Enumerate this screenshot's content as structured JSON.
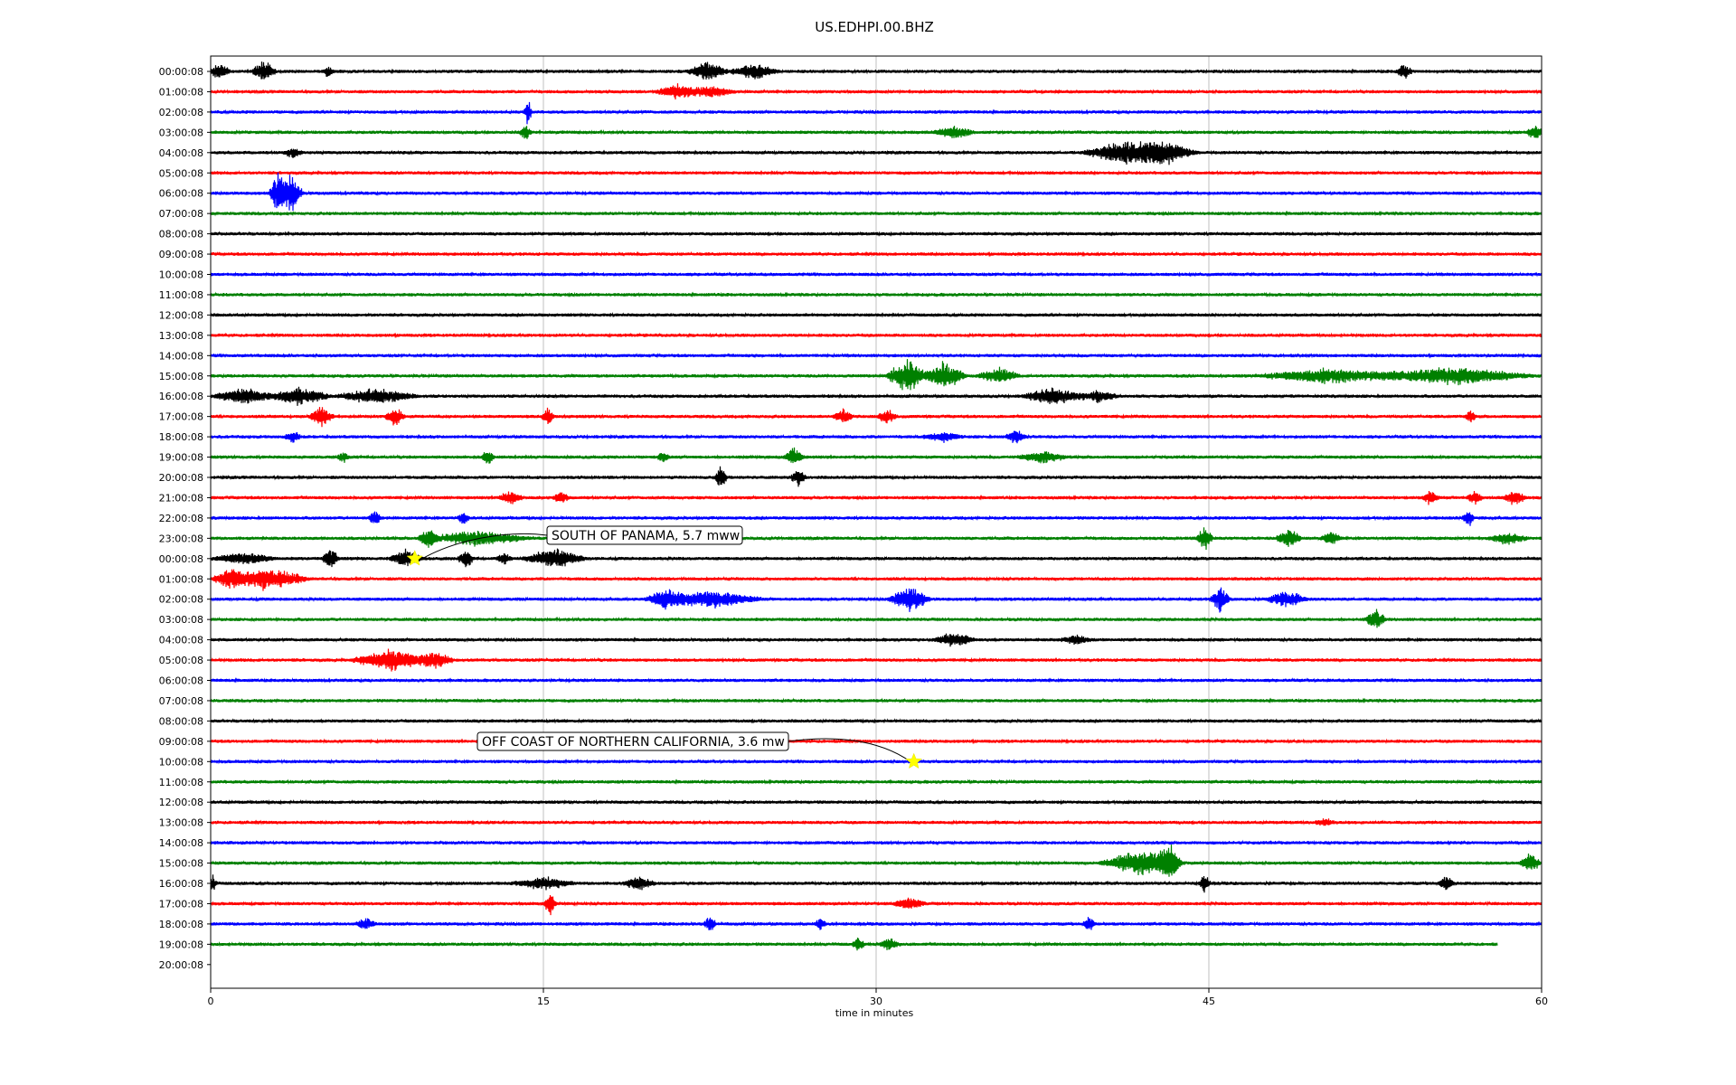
{
  "chart_data": {
    "type": "line",
    "title": "US.EDHPI.00.BHZ",
    "xlabel": "time in minutes",
    "ylabel": "",
    "xlim": [
      0,
      60
    ],
    "x_ticks": [
      0,
      15,
      30,
      45,
      60
    ],
    "grid": "vertical lines at x ticks",
    "trace_colors": [
      "#000000",
      "#ff0000",
      "#0000ff",
      "#008000"
    ],
    "row_labels": [
      "00:00:08",
      "01:00:08",
      "02:00:08",
      "03:00:08",
      "04:00:08",
      "05:00:08",
      "06:00:08",
      "07:00:08",
      "08:00:08",
      "09:00:08",
      "10:00:08",
      "11:00:08",
      "12:00:08",
      "13:00:08",
      "14:00:08",
      "15:00:08",
      "16:00:08",
      "17:00:08",
      "18:00:08",
      "19:00:08",
      "20:00:08",
      "21:00:08",
      "22:00:08",
      "23:00:08",
      "00:00:08",
      "01:00:08",
      "02:00:08",
      "03:00:08",
      "04:00:08",
      "05:00:08",
      "06:00:08",
      "07:00:08",
      "08:00:08",
      "09:00:08",
      "10:00:08",
      "11:00:08",
      "12:00:08",
      "13:00:08",
      "14:00:08",
      "15:00:08",
      "16:00:08",
      "17:00:08",
      "18:00:08",
      "19:00:08",
      "20:00:08"
    ],
    "trace_end_minutes": {
      "43": 58.0
    },
    "bursts": [
      {
        "row": 0,
        "x": 0.4,
        "amp": 0.6,
        "dur": 0.5
      },
      {
        "row": 0,
        "x": 2.4,
        "amp": 0.7,
        "dur": 0.6
      },
      {
        "row": 0,
        "x": 5.3,
        "amp": 0.4,
        "dur": 0.3
      },
      {
        "row": 0,
        "x": 22.4,
        "amp": 0.7,
        "dur": 1.0
      },
      {
        "row": 0,
        "x": 24.5,
        "amp": 0.5,
        "dur": 1.2
      },
      {
        "row": 0,
        "x": 53.8,
        "amp": 0.5,
        "dur": 0.4
      },
      {
        "row": 1,
        "x": 21.0,
        "amp": 0.5,
        "dur": 1.0
      },
      {
        "row": 1,
        "x": 22.5,
        "amp": 0.4,
        "dur": 1.2
      },
      {
        "row": 2,
        "x": 14.3,
        "amp": 0.9,
        "dur": 0.2
      },
      {
        "row": 3,
        "x": 14.2,
        "amp": 0.5,
        "dur": 0.3
      },
      {
        "row": 3,
        "x": 33.5,
        "amp": 0.4,
        "dur": 1.0
      },
      {
        "row": 3,
        "x": 59.7,
        "amp": 0.5,
        "dur": 0.4
      },
      {
        "row": 4,
        "x": 3.7,
        "amp": 0.3,
        "dur": 0.5
      },
      {
        "row": 4,
        "x": 41.2,
        "amp": 0.8,
        "dur": 2.0
      },
      {
        "row": 4,
        "x": 43.0,
        "amp": 0.8,
        "dur": 1.5
      },
      {
        "row": 6,
        "x": 3.0,
        "amp": 1.5,
        "dur": 0.4
      },
      {
        "row": 6,
        "x": 3.6,
        "amp": 1.4,
        "dur": 0.6
      },
      {
        "row": 15,
        "x": 31.4,
        "amp": 1.2,
        "dur": 1.0
      },
      {
        "row": 15,
        "x": 33.1,
        "amp": 1.0,
        "dur": 1.0
      },
      {
        "row": 15,
        "x": 35.5,
        "amp": 0.6,
        "dur": 1.0
      },
      {
        "row": 15,
        "x": 50.5,
        "amp": 0.5,
        "dur": 3.5
      },
      {
        "row": 15,
        "x": 56.0,
        "amp": 0.6,
        "dur": 3.8
      },
      {
        "row": 16,
        "x": 1.5,
        "amp": 0.6,
        "dur": 1.5
      },
      {
        "row": 16,
        "x": 4.0,
        "amp": 0.6,
        "dur": 1.5
      },
      {
        "row": 16,
        "x": 7.5,
        "amp": 0.5,
        "dur": 2.0
      },
      {
        "row": 16,
        "x": 38.0,
        "amp": 0.6,
        "dur": 1.5
      },
      {
        "row": 16,
        "x": 40.0,
        "amp": 0.4,
        "dur": 1.0
      },
      {
        "row": 17,
        "x": 5.0,
        "amp": 0.7,
        "dur": 0.6
      },
      {
        "row": 17,
        "x": 8.3,
        "amp": 0.7,
        "dur": 0.5
      },
      {
        "row": 17,
        "x": 15.2,
        "amp": 0.6,
        "dur": 0.3
      },
      {
        "row": 17,
        "x": 28.5,
        "amp": 0.5,
        "dur": 0.5
      },
      {
        "row": 17,
        "x": 30.5,
        "amp": 0.5,
        "dur": 0.5
      },
      {
        "row": 17,
        "x": 56.8,
        "amp": 0.4,
        "dur": 0.3
      },
      {
        "row": 18,
        "x": 3.7,
        "amp": 0.4,
        "dur": 0.4
      },
      {
        "row": 18,
        "x": 33.0,
        "amp": 0.3,
        "dur": 1.0
      },
      {
        "row": 18,
        "x": 36.3,
        "amp": 0.5,
        "dur": 0.5
      },
      {
        "row": 19,
        "x": 6.0,
        "amp": 0.4,
        "dur": 0.3
      },
      {
        "row": 19,
        "x": 12.5,
        "amp": 0.6,
        "dur": 0.3
      },
      {
        "row": 19,
        "x": 20.4,
        "amp": 0.4,
        "dur": 0.3
      },
      {
        "row": 19,
        "x": 26.3,
        "amp": 0.6,
        "dur": 0.5
      },
      {
        "row": 19,
        "x": 37.5,
        "amp": 0.4,
        "dur": 1.2
      },
      {
        "row": 20,
        "x": 23.0,
        "amp": 0.9,
        "dur": 0.3
      },
      {
        "row": 20,
        "x": 26.5,
        "amp": 0.6,
        "dur": 0.4
      },
      {
        "row": 21,
        "x": 13.5,
        "amp": 0.5,
        "dur": 0.6
      },
      {
        "row": 21,
        "x": 15.8,
        "amp": 0.4,
        "dur": 0.4
      },
      {
        "row": 21,
        "x": 55.0,
        "amp": 0.5,
        "dur": 0.4
      },
      {
        "row": 21,
        "x": 57.0,
        "amp": 0.5,
        "dur": 0.4
      },
      {
        "row": 21,
        "x": 58.8,
        "amp": 0.5,
        "dur": 0.6
      },
      {
        "row": 22,
        "x": 7.4,
        "amp": 0.6,
        "dur": 0.3
      },
      {
        "row": 22,
        "x": 11.4,
        "amp": 0.4,
        "dur": 0.3
      },
      {
        "row": 22,
        "x": 56.7,
        "amp": 0.7,
        "dur": 0.3
      },
      {
        "row": 23,
        "x": 9.8,
        "amp": 0.7,
        "dur": 0.5
      },
      {
        "row": 23,
        "x": 12.0,
        "amp": 0.5,
        "dur": 2.5
      },
      {
        "row": 23,
        "x": 44.8,
        "amp": 0.9,
        "dur": 0.4
      },
      {
        "row": 23,
        "x": 48.6,
        "amp": 0.8,
        "dur": 0.6
      },
      {
        "row": 23,
        "x": 50.5,
        "amp": 0.5,
        "dur": 0.5
      },
      {
        "row": 23,
        "x": 58.5,
        "amp": 0.4,
        "dur": 1.0
      },
      {
        "row": 24,
        "x": 1.5,
        "amp": 0.4,
        "dur": 1.5
      },
      {
        "row": 24,
        "x": 5.4,
        "amp": 0.8,
        "dur": 0.4
      },
      {
        "row": 24,
        "x": 8.8,
        "amp": 0.6,
        "dur": 0.8
      },
      {
        "row": 24,
        "x": 11.5,
        "amp": 0.7,
        "dur": 0.4
      },
      {
        "row": 24,
        "x": 13.2,
        "amp": 0.4,
        "dur": 0.4
      },
      {
        "row": 24,
        "x": 15.5,
        "amp": 0.7,
        "dur": 1.5
      },
      {
        "row": 25,
        "x": 0.8,
        "amp": 0.6,
        "dur": 0.8
      },
      {
        "row": 25,
        "x": 2.5,
        "amp": 0.8,
        "dur": 2.0
      },
      {
        "row": 26,
        "x": 20.5,
        "amp": 0.6,
        "dur": 1.0
      },
      {
        "row": 26,
        "x": 22.5,
        "amp": 0.6,
        "dur": 2.5
      },
      {
        "row": 26,
        "x": 31.5,
        "amp": 0.9,
        "dur": 1.0
      },
      {
        "row": 26,
        "x": 45.5,
        "amp": 0.8,
        "dur": 0.5
      },
      {
        "row": 26,
        "x": 48.5,
        "amp": 0.6,
        "dur": 1.0
      },
      {
        "row": 27,
        "x": 52.5,
        "amp": 0.8,
        "dur": 0.5
      },
      {
        "row": 28,
        "x": 33.5,
        "amp": 0.5,
        "dur": 1.0
      },
      {
        "row": 28,
        "x": 39.0,
        "amp": 0.3,
        "dur": 0.8
      },
      {
        "row": 29,
        "x": 8.2,
        "amp": 0.7,
        "dur": 2.0
      },
      {
        "row": 29,
        "x": 10.2,
        "amp": 0.6,
        "dur": 0.8
      },
      {
        "row": 37,
        "x": 50.2,
        "amp": 0.3,
        "dur": 0.5
      },
      {
        "row": 39,
        "x": 42.0,
        "amp": 0.9,
        "dur": 2.0
      },
      {
        "row": 39,
        "x": 43.2,
        "amp": 1.0,
        "dur": 0.6
      },
      {
        "row": 39,
        "x": 59.5,
        "amp": 0.7,
        "dur": 0.5
      },
      {
        "row": 40,
        "x": 0.1,
        "amp": 0.6,
        "dur": 0.2
      },
      {
        "row": 40,
        "x": 15.0,
        "amp": 0.4,
        "dur": 1.5
      },
      {
        "row": 40,
        "x": 19.3,
        "amp": 0.5,
        "dur": 0.8
      },
      {
        "row": 40,
        "x": 44.8,
        "amp": 0.6,
        "dur": 0.3
      },
      {
        "row": 40,
        "x": 55.7,
        "amp": 0.5,
        "dur": 0.4
      },
      {
        "row": 41,
        "x": 15.3,
        "amp": 0.8,
        "dur": 0.3
      },
      {
        "row": 41,
        "x": 31.5,
        "amp": 0.4,
        "dur": 0.8
      },
      {
        "row": 42,
        "x": 7.0,
        "amp": 0.4,
        "dur": 0.5
      },
      {
        "row": 42,
        "x": 22.5,
        "amp": 0.6,
        "dur": 0.3
      },
      {
        "row": 42,
        "x": 27.5,
        "amp": 0.4,
        "dur": 0.3
      },
      {
        "row": 42,
        "x": 39.6,
        "amp": 0.5,
        "dur": 0.3
      },
      {
        "row": 43,
        "x": 29.2,
        "amp": 0.5,
        "dur": 0.3
      },
      {
        "row": 43,
        "x": 30.6,
        "amp": 0.4,
        "dur": 0.5
      }
    ],
    "events": [
      {
        "label": "SOUTH OF PANAMA, 5.7 mww",
        "row": 24,
        "x": 9.2
      },
      {
        "label": "OFF COAST OF NORTHERN CALIFORNIA, 3.6 mw",
        "row": 34,
        "x": 31.7
      }
    ]
  }
}
